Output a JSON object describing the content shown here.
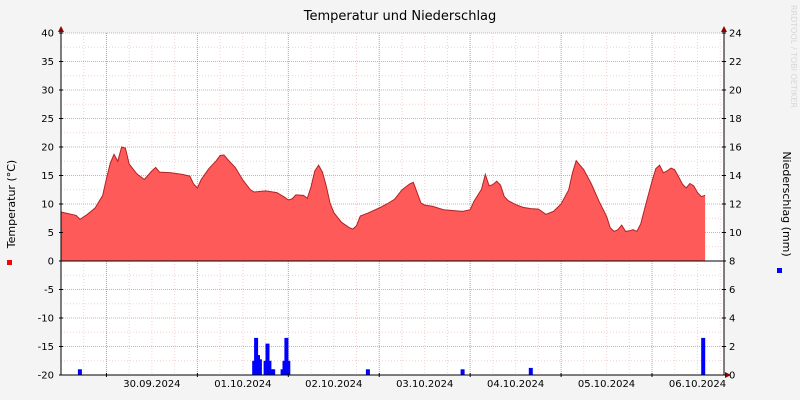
{
  "watermark": "RRDTOOL / TOBI OETIKER",
  "chart_data": {
    "type": "area",
    "title": "Temperatur und Niederschlag",
    "left_axis": {
      "label": "Temperatur (°C)",
      "range": [
        -20,
        40
      ],
      "ticks": [
        40,
        35,
        30,
        25,
        20,
        15,
        10,
        5,
        0,
        -5,
        -10,
        -15,
        -20
      ]
    },
    "right_axis": {
      "label": "Niederschlag (mm)",
      "range": [
        0,
        24
      ],
      "ticks": [
        24,
        22,
        20,
        18,
        16,
        14,
        12,
        10,
        8,
        6,
        4,
        2,
        0
      ]
    },
    "x_range": [
      "2024-09-29T12:00",
      "2024-10-06T19:00"
    ],
    "x_ticks": [
      {
        "t": "2024-09-30T00:00",
        "label": "30.09.2024"
      },
      {
        "t": "2024-10-01T00:00",
        "label": "01.10.2024"
      },
      {
        "t": "2024-10-02T00:00",
        "label": "02.10.2024"
      },
      {
        "t": "2024-10-03T00:00",
        "label": "03.10.2024"
      },
      {
        "t": "2024-10-04T00:00",
        "label": "04.10.2024"
      },
      {
        "t": "2024-10-05T00:00",
        "label": "05.10.2024"
      },
      {
        "t": "2024-10-06T00:00",
        "label": "06.10.2024"
      }
    ],
    "grid": true,
    "legend_placement": "beside axis labels",
    "colors": {
      "temperature": "#ff5a5a",
      "temperature_line": "#b22222",
      "precipitation": "#0000ff",
      "grid": "#f2b8b8",
      "frame_arrows": "#8b0000"
    },
    "series": [
      {
        "name": "Temperatur",
        "axis": "left",
        "kind": "area",
        "points": [
          [
            "2024-09-29T12:00",
            8.6
          ],
          [
            "2024-09-29T14:00",
            8.3
          ],
          [
            "2024-09-29T16:00",
            8.0
          ],
          [
            "2024-09-29T17:00",
            7.3
          ],
          [
            "2024-09-29T19:00",
            8.2
          ],
          [
            "2024-09-29T21:00",
            9.3
          ],
          [
            "2024-09-29T23:00",
            11.5
          ],
          [
            "2024-09-30T00:00",
            14.5
          ],
          [
            "2024-09-30T01:00",
            17.2
          ],
          [
            "2024-09-30T02:00",
            18.7
          ],
          [
            "2024-09-30T03:00",
            17.5
          ],
          [
            "2024-09-30T04:00",
            20.0
          ],
          [
            "2024-09-30T05:00",
            19.8
          ],
          [
            "2024-09-30T06:00",
            17.0
          ],
          [
            "2024-09-30T08:00",
            15.3
          ],
          [
            "2024-09-30T10:00",
            14.3
          ],
          [
            "2024-09-30T12:00",
            15.8
          ],
          [
            "2024-09-30T13:00",
            16.4
          ],
          [
            "2024-09-30T14:00",
            15.6
          ],
          [
            "2024-09-30T17:00",
            15.5
          ],
          [
            "2024-09-30T20:00",
            15.2
          ],
          [
            "2024-09-30T22:00",
            14.9
          ],
          [
            "2024-09-30T23:00",
            13.5
          ],
          [
            "2024-10-01T00:00",
            12.8
          ],
          [
            "2024-10-01T01:00",
            14.3
          ],
          [
            "2024-10-01T03:00",
            16.2
          ],
          [
            "2024-10-01T05:00",
            17.6
          ],
          [
            "2024-10-01T06:00",
            18.5
          ],
          [
            "2024-10-01T07:00",
            18.6
          ],
          [
            "2024-10-01T08:00",
            17.8
          ],
          [
            "2024-10-01T10:00",
            16.4
          ],
          [
            "2024-10-01T12:00",
            14.2
          ],
          [
            "2024-10-01T14:00",
            12.5
          ],
          [
            "2024-10-01T15:00",
            12.1
          ],
          [
            "2024-10-01T18:00",
            12.3
          ],
          [
            "2024-10-01T21:00",
            12.0
          ],
          [
            "2024-10-01T23:00",
            11.2
          ],
          [
            "2024-10-02T00:00",
            10.7
          ],
          [
            "2024-10-02T01:00",
            10.9
          ],
          [
            "2024-10-02T02:00",
            11.6
          ],
          [
            "2024-10-02T04:00",
            11.5
          ],
          [
            "2024-10-02T05:00",
            11.0
          ],
          [
            "2024-10-02T06:00",
            13.0
          ],
          [
            "2024-10-02T07:00",
            15.8
          ],
          [
            "2024-10-02T08:00",
            16.8
          ],
          [
            "2024-10-02T09:00",
            15.6
          ],
          [
            "2024-10-02T10:00",
            13.2
          ],
          [
            "2024-10-02T11:00",
            10.2
          ],
          [
            "2024-10-02T12:00",
            8.5
          ],
          [
            "2024-10-02T14:00",
            6.8
          ],
          [
            "2024-10-02T16:00",
            5.9
          ],
          [
            "2024-10-02T17:00",
            5.6
          ],
          [
            "2024-10-02T18:00",
            6.2
          ],
          [
            "2024-10-02T19:00",
            7.9
          ],
          [
            "2024-10-02T21:00",
            8.4
          ],
          [
            "2024-10-03T00:00",
            9.3
          ],
          [
            "2024-10-03T02:00",
            10.0
          ],
          [
            "2024-10-03T04:00",
            10.8
          ],
          [
            "2024-10-03T06:00",
            12.5
          ],
          [
            "2024-10-03T08:00",
            13.5
          ],
          [
            "2024-10-03T09:00",
            13.8
          ],
          [
            "2024-10-03T10:00",
            12.0
          ],
          [
            "2024-10-03T11:00",
            10.2
          ],
          [
            "2024-10-03T12:00",
            9.8
          ],
          [
            "2024-10-03T14:00",
            9.6
          ],
          [
            "2024-10-03T17:00",
            9.0
          ],
          [
            "2024-10-03T20:00",
            8.8
          ],
          [
            "2024-10-03T22:00",
            8.7
          ],
          [
            "2024-10-04T00:00",
            9.0
          ],
          [
            "2024-10-04T01:00",
            10.5
          ],
          [
            "2024-10-04T02:00",
            11.5
          ],
          [
            "2024-10-04T03:00",
            12.6
          ],
          [
            "2024-10-04T04:00",
            15.2
          ],
          [
            "2024-10-04T05:00",
            13.2
          ],
          [
            "2024-10-04T06:00",
            13.4
          ],
          [
            "2024-10-04T07:00",
            14.0
          ],
          [
            "2024-10-04T08:00",
            13.3
          ],
          [
            "2024-10-04T09:00",
            11.3
          ],
          [
            "2024-10-04T10:00",
            10.6
          ],
          [
            "2024-10-04T12:00",
            9.9
          ],
          [
            "2024-10-04T14:00",
            9.4
          ],
          [
            "2024-10-04T16:00",
            9.2
          ],
          [
            "2024-10-04T18:00",
            9.1
          ],
          [
            "2024-10-04T20:00",
            8.2
          ],
          [
            "2024-10-04T22:00",
            8.7
          ],
          [
            "2024-10-05T00:00",
            10.0
          ],
          [
            "2024-10-05T02:00",
            12.5
          ],
          [
            "2024-10-05T03:00",
            15.5
          ],
          [
            "2024-10-05T04:00",
            17.6
          ],
          [
            "2024-10-05T05:00",
            16.8
          ],
          [
            "2024-10-05T06:00",
            16.0
          ],
          [
            "2024-10-05T08:00",
            13.5
          ],
          [
            "2024-10-05T10:00",
            10.5
          ],
          [
            "2024-10-05T12:00",
            7.8
          ],
          [
            "2024-10-05T13:00",
            5.8
          ],
          [
            "2024-10-05T14:00",
            5.2
          ],
          [
            "2024-10-05T15:00",
            5.5
          ],
          [
            "2024-10-05T16:00",
            6.3
          ],
          [
            "2024-10-05T17:00",
            5.2
          ],
          [
            "2024-10-05T18:00",
            5.3
          ],
          [
            "2024-10-05T19:00",
            5.5
          ],
          [
            "2024-10-05T20:00",
            5.2
          ],
          [
            "2024-10-05T21:00",
            6.5
          ],
          [
            "2024-10-05T22:00",
            9.0
          ],
          [
            "2024-10-05T23:00",
            11.5
          ],
          [
            "2024-10-06T00:00",
            14.0
          ],
          [
            "2024-10-06T01:00",
            16.2
          ],
          [
            "2024-10-06T02:00",
            16.8
          ],
          [
            "2024-10-06T03:00",
            15.5
          ],
          [
            "2024-10-06T04:00",
            15.8
          ],
          [
            "2024-10-06T05:00",
            16.3
          ],
          [
            "2024-10-06T06:00",
            16.0
          ],
          [
            "2024-10-06T07:00",
            14.8
          ],
          [
            "2024-10-06T08:00",
            13.5
          ],
          [
            "2024-10-06T09:00",
            12.8
          ],
          [
            "2024-10-06T10:00",
            13.6
          ],
          [
            "2024-10-06T11:00",
            13.2
          ],
          [
            "2024-10-06T12:00",
            12.0
          ],
          [
            "2024-10-06T13:00",
            11.3
          ],
          [
            "2024-10-06T14:00",
            11.5
          ]
        ]
      },
      {
        "name": "Niederschlag",
        "axis": "right",
        "kind": "bar",
        "bars": [
          [
            "2024-09-29T17:00",
            0.4
          ],
          [
            "2024-10-01T15:00",
            1.0
          ],
          [
            "2024-10-01T15:30",
            2.6
          ],
          [
            "2024-10-01T16:00",
            1.4
          ],
          [
            "2024-10-01T16:30",
            1.1
          ],
          [
            "2024-10-01T18:00",
            1.0
          ],
          [
            "2024-10-01T18:30",
            2.2
          ],
          [
            "2024-10-01T19:00",
            1.0
          ],
          [
            "2024-10-01T19:30",
            0.4
          ],
          [
            "2024-10-01T20:00",
            0.4
          ],
          [
            "2024-10-01T22:30",
            0.4
          ],
          [
            "2024-10-01T23:00",
            1.0
          ],
          [
            "2024-10-01T23:30",
            2.6
          ],
          [
            "2024-10-02T00:00",
            1.0
          ],
          [
            "2024-10-02T21:00",
            0.4
          ],
          [
            "2024-10-03T22:00",
            0.4
          ],
          [
            "2024-10-04T16:00",
            0.5
          ],
          [
            "2024-10-06T13:30",
            2.6
          ]
        ]
      }
    ]
  }
}
